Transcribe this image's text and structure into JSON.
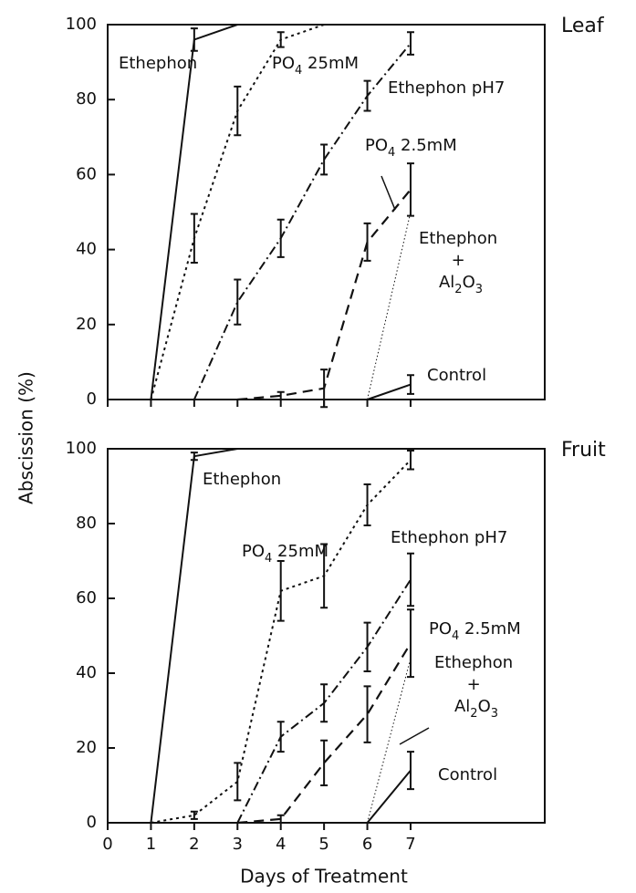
{
  "charts": [
    {
      "type": "line",
      "title": "Leaf",
      "show_xtick_labels": false,
      "xlim": [
        0,
        10.1
      ],
      "xticks": [
        0,
        1,
        2,
        3,
        4,
        5,
        6,
        7
      ],
      "ylim": [
        0,
        100
      ],
      "yticks": [
        0,
        20,
        40,
        60,
        80,
        100
      ],
      "series": [
        {
          "name": "Ethephon",
          "color": "#111",
          "style": "solid",
          "x": [
            1,
            2,
            3
          ],
          "values": [
            0,
            96,
            100
          ],
          "errors": [
            null,
            3,
            null
          ]
        },
        {
          "name": "PO4 25mM",
          "color": "#111",
          "style": "dotted",
          "x": [
            1,
            2,
            3,
            4,
            5
          ],
          "values": [
            0,
            43,
            77,
            96,
            100
          ],
          "errors": [
            null,
            6.5,
            6.5,
            2,
            null
          ]
        },
        {
          "name": "Ethephon pH7",
          "color": "#111",
          "style": "dashdot",
          "x": [
            2,
            3,
            4,
            5,
            6,
            7
          ],
          "values": [
            0,
            26,
            43,
            64,
            81,
            95
          ],
          "errors": [
            null,
            6,
            5,
            4,
            4,
            3
          ]
        },
        {
          "name": "PO4 2.5mM",
          "color": "#111",
          "style": "dashed",
          "x": [
            3,
            4,
            5,
            6,
            7
          ],
          "values": [
            0,
            1,
            3,
            42,
            56
          ],
          "errors": [
            null,
            1,
            5,
            5,
            7
          ]
        },
        {
          "name": "Ethephon + Al2O3",
          "color": "#111",
          "style": "thin-dotted",
          "x": [
            6,
            7
          ],
          "values": [
            0,
            50
          ],
          "errors": [
            null,
            null
          ]
        },
        {
          "name": "Control",
          "color": "#111",
          "style": "solid",
          "x": [
            6,
            7
          ],
          "values": [
            0,
            4
          ],
          "errors": [
            null,
            2.5
          ]
        }
      ]
    },
    {
      "type": "line",
      "title": "Fruit",
      "show_xtick_labels": true,
      "xlim": [
        0,
        10.1
      ],
      "xticks": [
        0,
        1,
        2,
        3,
        4,
        5,
        6,
        7
      ],
      "ylim": [
        0,
        100
      ],
      "yticks": [
        0,
        20,
        40,
        60,
        80,
        100
      ],
      "series": [
        {
          "name": "Ethephon",
          "color": "#111",
          "style": "solid",
          "x": [
            1,
            2,
            3
          ],
          "values": [
            0,
            98,
            100
          ],
          "errors": [
            null,
            1,
            null
          ]
        },
        {
          "name": "PO4 25mM",
          "color": "#111",
          "style": "dotted",
          "x": [
            1,
            2,
            3,
            4,
            5,
            6,
            7
          ],
          "values": [
            0,
            2,
            11,
            62,
            66,
            85,
            97
          ],
          "errors": [
            null,
            1,
            5,
            8,
            8.5,
            5.5,
            2.5
          ]
        },
        {
          "name": "Ethephon pH7",
          "color": "#111",
          "style": "dashdot",
          "x": [
            3,
            4,
            5,
            6,
            7
          ],
          "values": [
            0,
            23,
            32,
            47,
            65
          ],
          "errors": [
            null,
            4,
            5,
            6.5,
            7
          ]
        },
        {
          "name": "PO4 2.5mM",
          "color": "#111",
          "style": "dashed",
          "x": [
            3,
            4,
            5,
            6,
            7
          ],
          "values": [
            0,
            1,
            16,
            29,
            48
          ],
          "errors": [
            null,
            1,
            6,
            7.5,
            9
          ]
        },
        {
          "name": "Ethephon + Al2O3",
          "color": "#111",
          "style": "thin-dotted",
          "x": [
            6,
            7
          ],
          "values": [
            0,
            44
          ],
          "errors": [
            null,
            null
          ]
        },
        {
          "name": "Control",
          "color": "#111",
          "style": "solid",
          "x": [
            6,
            7
          ],
          "values": [
            0,
            14
          ],
          "errors": [
            null,
            5
          ]
        }
      ]
    }
  ],
  "ylabel": "Abscission (%)",
  "xlabel": "Days of Treatment"
}
